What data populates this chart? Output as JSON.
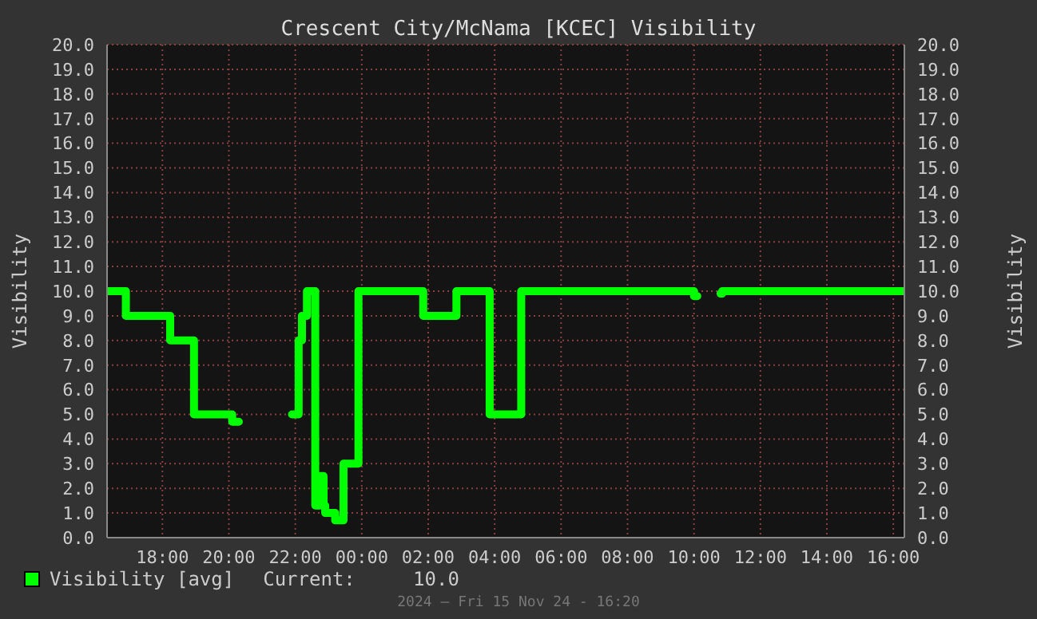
{
  "chart_data": {
    "type": "step",
    "title": "Crescent City/McNama [KCEC] Visibility",
    "ylabel": "Visibility",
    "y2label": "Visibility",
    "annotations": [
      "Current:     10.0",
      "2024 — Fri 15 Nov 24 - 16:20"
    ],
    "x": [
      "2024-11-14T16:20",
      "2024-11-14T16:54",
      "2024-11-14T18:14",
      "2024-11-14T18:57",
      "2024-11-14T20:06",
      "2024-11-14T20:18",
      "2024-11-14T20:21",
      "2024-11-14T21:54",
      "2024-11-14T22:06",
      "2024-11-14T22:12",
      "2024-11-14T22:21",
      "2024-11-14T22:36",
      "2024-11-14T22:45",
      "2024-11-14T22:51",
      "2024-11-14T22:54",
      "2024-11-14T23:12",
      "2024-11-14T23:27",
      "2024-11-14T23:54",
      "2024-11-15T01:51",
      "2024-11-15T02:51",
      "2024-11-15T03:51",
      "2024-11-15T04:48",
      "2024-11-15T10:00",
      "2024-11-15T10:06",
      "2024-11-15T10:09",
      "2024-11-15T10:48",
      "2024-11-15T10:51",
      "2024-11-15T16:20"
    ],
    "series": [
      {
        "name": "Visibility [avg]",
        "color": "#00ff00",
        "values": [
          10,
          9,
          8,
          5,
          4.7,
          4.7,
          null,
          5,
          8,
          9,
          10,
          1.3,
          2.5,
          1.3,
          1.0,
          0.7,
          3,
          10,
          9,
          10,
          5,
          10,
          9.8,
          9.8,
          null,
          9.9,
          10,
          10
        ]
      }
    ],
    "xlim": [
      "2024-11-14T16:20",
      "2024-11-15T16:20"
    ],
    "xticks": [
      {
        "value": "2024-11-14T18:00",
        "label": "18:00"
      },
      {
        "value": "2024-11-14T20:00",
        "label": "20:00"
      },
      {
        "value": "2024-11-14T22:00",
        "label": "22:00"
      },
      {
        "value": "2024-11-15T00:00",
        "label": "00:00"
      },
      {
        "value": "2024-11-15T02:00",
        "label": "02:00"
      },
      {
        "value": "2024-11-15T04:00",
        "label": "04:00"
      },
      {
        "value": "2024-11-15T06:00",
        "label": "06:00"
      },
      {
        "value": "2024-11-15T08:00",
        "label": "08:00"
      },
      {
        "value": "2024-11-15T10:00",
        "label": "10:00"
      },
      {
        "value": "2024-11-15T12:00",
        "label": "12:00"
      },
      {
        "value": "2024-11-15T14:00",
        "label": "14:00"
      },
      {
        "value": "2024-11-15T16:00",
        "label": "16:00"
      }
    ],
    "ylim": [
      0,
      20
    ],
    "yticks": [
      {
        "value": 0,
        "label": "0.0"
      },
      {
        "value": 1,
        "label": "1.0"
      },
      {
        "value": 2,
        "label": "2.0"
      },
      {
        "value": 3,
        "label": "3.0"
      },
      {
        "value": 4,
        "label": "4.0"
      },
      {
        "value": 5,
        "label": "5.0"
      },
      {
        "value": 6,
        "label": "6.0"
      },
      {
        "value": 7,
        "label": "7.0"
      },
      {
        "value": 8,
        "label": "8.0"
      },
      {
        "value": 9,
        "label": "9.0"
      },
      {
        "value": 10,
        "label": "10.0"
      },
      {
        "value": 11,
        "label": "11.0"
      },
      {
        "value": 12,
        "label": "12.0"
      },
      {
        "value": 13,
        "label": "13.0"
      },
      {
        "value": 14,
        "label": "14.0"
      },
      {
        "value": 15,
        "label": "15.0"
      },
      {
        "value": 16,
        "label": "16.0"
      },
      {
        "value": 17,
        "label": "17.0"
      },
      {
        "value": 18,
        "label": "18.0"
      },
      {
        "value": 19,
        "label": "19.0"
      },
      {
        "value": 20,
        "label": "20.0"
      }
    ],
    "y2lim": [
      0,
      20
    ],
    "y2ticks": [
      {
        "value": 0,
        "label": "0.0"
      },
      {
        "value": 1,
        "label": "1.0"
      },
      {
        "value": 2,
        "label": "2.0"
      },
      {
        "value": 3,
        "label": "3.0"
      },
      {
        "value": 4,
        "label": "4.0"
      },
      {
        "value": 5,
        "label": "5.0"
      },
      {
        "value": 6,
        "label": "6.0"
      },
      {
        "value": 7,
        "label": "7.0"
      },
      {
        "value": 8,
        "label": "8.0"
      },
      {
        "value": 9,
        "label": "9.0"
      },
      {
        "value": 10,
        "label": "10.0"
      },
      {
        "value": 11,
        "label": "11.0"
      },
      {
        "value": 12,
        "label": "12.0"
      },
      {
        "value": 13,
        "label": "13.0"
      },
      {
        "value": 14,
        "label": "14.0"
      },
      {
        "value": 15,
        "label": "15.0"
      },
      {
        "value": 16,
        "label": "16.0"
      },
      {
        "value": 17,
        "label": "17.0"
      },
      {
        "value": 18,
        "label": "18.0"
      },
      {
        "value": 19,
        "label": "19.0"
      },
      {
        "value": 20,
        "label": "20.0"
      }
    ],
    "grid": true,
    "legend": "bottom"
  }
}
